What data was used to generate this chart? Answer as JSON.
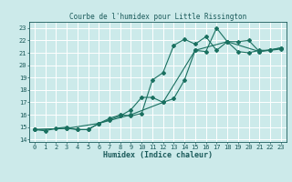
{
  "title": "Courbe de l'humidex pour Little Rissington",
  "xlabel": "Humidex (Indice chaleur)",
  "bg_color": "#cceaea",
  "grid_color": "#ffffff",
  "line_color": "#1a7060",
  "xlim": [
    -0.5,
    23.5
  ],
  "ylim": [
    13.8,
    23.5
  ],
  "xticks": [
    0,
    1,
    2,
    3,
    4,
    5,
    6,
    7,
    8,
    9,
    10,
    11,
    12,
    13,
    14,
    15,
    16,
    17,
    18,
    19,
    20,
    21,
    22,
    23
  ],
  "yticks": [
    14,
    15,
    16,
    17,
    18,
    19,
    20,
    21,
    22,
    23
  ],
  "line1_x": [
    0,
    1,
    2,
    3,
    4,
    5,
    6,
    7,
    8,
    9,
    10,
    11,
    12,
    13,
    14,
    15,
    16,
    17,
    18,
    19,
    20,
    21,
    22,
    23
  ],
  "line1_y": [
    14.8,
    14.7,
    14.9,
    15.0,
    14.8,
    14.8,
    15.3,
    15.7,
    16.0,
    15.9,
    16.1,
    18.8,
    19.4,
    21.6,
    22.1,
    21.7,
    22.3,
    21.2,
    21.9,
    21.1,
    21.0,
    21.2,
    21.2,
    21.3
  ],
  "line2_x": [
    0,
    3,
    4,
    5,
    6,
    7,
    8,
    9,
    10,
    11,
    12,
    13,
    14,
    15,
    16,
    17,
    18,
    19,
    20,
    21,
    22,
    23
  ],
  "line2_y": [
    14.8,
    14.9,
    14.8,
    14.8,
    15.3,
    15.6,
    15.9,
    16.4,
    17.4,
    17.4,
    17.0,
    17.3,
    18.8,
    21.2,
    21.1,
    23.0,
    21.9,
    21.9,
    22.0,
    21.1,
    21.2,
    21.4
  ],
  "line3_x": [
    0,
    3,
    6,
    9,
    12,
    15,
    18,
    21,
    23
  ],
  "line3_y": [
    14.8,
    14.9,
    15.3,
    16.0,
    17.0,
    21.2,
    21.9,
    21.1,
    21.4
  ],
  "title_fontsize": 5.5,
  "tick_fontsize": 5.0,
  "xlabel_fontsize": 6.0
}
